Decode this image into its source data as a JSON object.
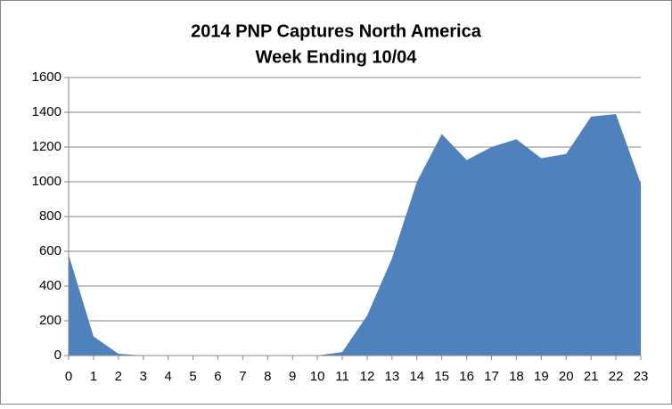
{
  "chart_data": {
    "type": "area",
    "title": "2014 PNP Captures North America",
    "subtitle": "Week Ending 10/04",
    "x": [
      0,
      1,
      2,
      3,
      4,
      5,
      6,
      7,
      8,
      9,
      10,
      11,
      12,
      13,
      14,
      15,
      16,
      17,
      18,
      19,
      20,
      21,
      22,
      23
    ],
    "values": [
      580,
      110,
      10,
      0,
      0,
      0,
      0,
      0,
      0,
      0,
      0,
      20,
      230,
      560,
      1000,
      1275,
      1125,
      1200,
      1245,
      1135,
      1160,
      1375,
      1390,
      990
    ],
    "color": "#4f81bd",
    "xlim": [
      0,
      23
    ],
    "xticks": [
      0,
      1,
      2,
      3,
      4,
      5,
      6,
      7,
      8,
      9,
      10,
      11,
      12,
      13,
      14,
      15,
      16,
      17,
      18,
      19,
      20,
      21,
      22,
      23
    ],
    "ylim": [
      0,
      1600
    ],
    "yticks": [
      0,
      200,
      400,
      600,
      800,
      1000,
      1200,
      1400,
      1600
    ],
    "grid": true
  }
}
